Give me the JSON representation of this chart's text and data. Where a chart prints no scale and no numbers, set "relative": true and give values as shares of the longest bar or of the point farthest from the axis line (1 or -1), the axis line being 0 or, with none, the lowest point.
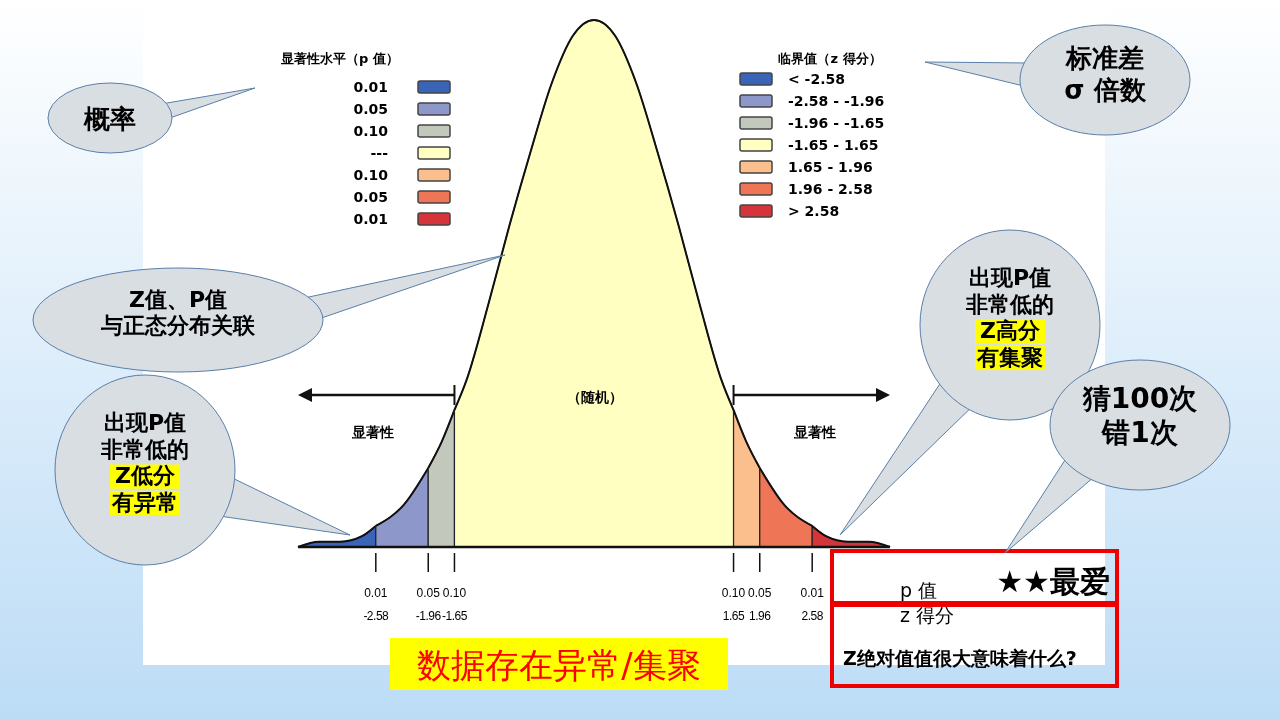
{
  "chart_data": {
    "type": "area",
    "relative": true,
    "title": "数据存在异常/集聚",
    "xlabel": "z 得分",
    "xlim": [
      -3.5,
      3.5
    ],
    "xticks": [
      -2.58,
      -1.96,
      -1.65,
      1.65,
      1.96,
      2.58
    ],
    "legend": "top right",
    "legend_title": "临界值（z 得分）",
    "grid": false,
    "series": [
      {
        "name": "< -2.58",
        "color": "#3a64b8",
        "x": [
          -3.5,
          -3.25,
          -3,
          -2.75,
          -2.58
        ],
        "values": [
          0.0,
          0.01,
          0.01,
          0.02,
          0.04
        ]
      },
      {
        "name": "-2.58 - -1.96",
        "color": "#8d97c9",
        "x": [
          -2.58,
          -2.25,
          -1.96
        ],
        "values": [
          0.04,
          0.08,
          0.15
        ]
      },
      {
        "name": "-1.96 - -1.65",
        "color": "#c3c8bd",
        "x": [
          -1.96,
          -1.8,
          -1.65
        ],
        "values": [
          0.15,
          0.2,
          0.26
        ]
      },
      {
        "name": "-1.65 - 1.65",
        "color": "#ffffc2",
        "x": [
          -1.65,
          -1.5,
          -1.25,
          -1,
          -0.75,
          -0.5,
          -0.25,
          0,
          0.25,
          0.5,
          0.75,
          1,
          1.25,
          1.5,
          1.65
        ],
        "values": [
          0.26,
          0.32,
          0.46,
          0.61,
          0.75,
          0.88,
          0.97,
          1,
          0.97,
          0.88,
          0.75,
          0.61,
          0.46,
          0.32,
          0.26
        ]
      },
      {
        "name": "1.65 - 1.96",
        "color": "#fbbe8d",
        "x": [
          1.65,
          1.8,
          1.96
        ],
        "values": [
          0.26,
          0.2,
          0.15
        ]
      },
      {
        "name": "1.96 - 2.58",
        "color": "#ee7657",
        "x": [
          1.96,
          2.25,
          2.58
        ],
        "values": [
          0.15,
          0.08,
          0.04
        ]
      },
      {
        "name": "> 2.58",
        "color": "#d5343a",
        "x": [
          2.58,
          2.75,
          3,
          3.25,
          3.5
        ],
        "values": [
          0.04,
          0.02,
          0.01,
          0.01,
          0.0
        ]
      }
    ],
    "annotations": [
      "显著性水平（p 值）",
      "0.01",
      "0.05",
      "0.10",
      "---",
      "0.10",
      "0.05",
      "0.01",
      "概率",
      "标准差\nσ 倍数",
      "Z值、P值与正态分布关联",
      "出现P值非常低的Z低分有异常",
      "出现P值非常低的Z高分有集聚",
      "猜100次错1次",
      "★★最爱",
      "Z绝对值值很大意味着什么?",
      "显著性",
      "显著性",
      "（随机）",
      "p 值",
      "0.01",
      "0.05",
      "0.10",
      "0.10",
      "0.05",
      "0.01"
    ]
  }
}
